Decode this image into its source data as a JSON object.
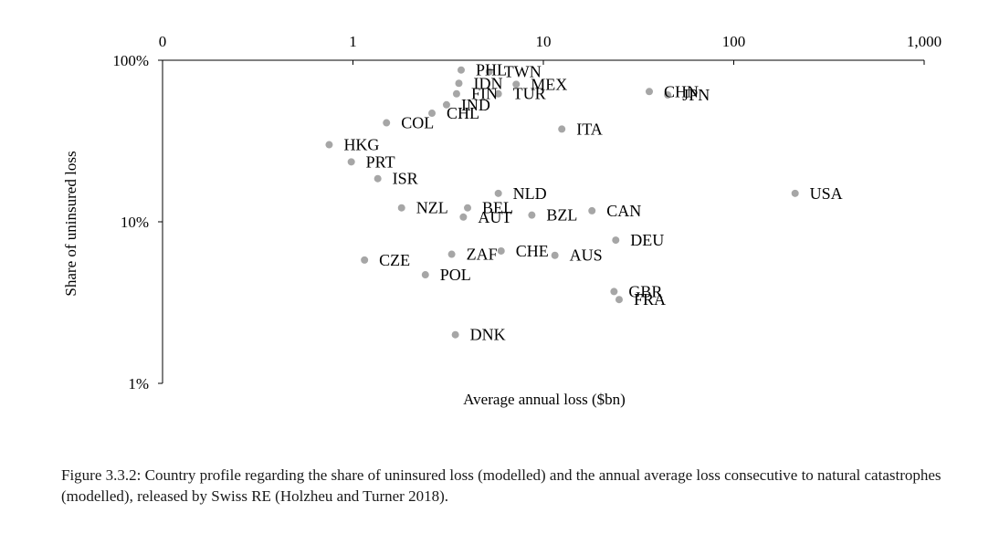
{
  "chart_data": {
    "type": "scatter",
    "title": "",
    "xlabel": "Average annual loss ($bn)",
    "ylabel": "Share of uninsured loss",
    "x_scale": "log",
    "y_scale": "log",
    "xlim": [
      0.1,
      1000
    ],
    "ylim": [
      0.01,
      1
    ],
    "x_ticks": [
      {
        "value": 0.1,
        "label": "0"
      },
      {
        "value": 1,
        "label": "1"
      },
      {
        "value": 10,
        "label": "10"
      },
      {
        "value": 100,
        "label": "100"
      },
      {
        "value": 1000,
        "label": "1,000"
      }
    ],
    "y_ticks": [
      {
        "value": 1,
        "label": "100%"
      },
      {
        "value": 0.1,
        "label": "10%"
      },
      {
        "value": 0.01,
        "label": "1%"
      }
    ],
    "x_axis_position": "top",
    "grid": false,
    "legend": "none",
    "marker_color": "#a6a6a6",
    "points": [
      {
        "label": "PHL",
        "x": 3.7,
        "y": 0.87
      },
      {
        "label": "TWN",
        "x": 5.2,
        "y": 0.85
      },
      {
        "label": "IDN",
        "x": 3.6,
        "y": 0.72
      },
      {
        "label": "MEX",
        "x": 7.2,
        "y": 0.71
      },
      {
        "label": "FIN",
        "x": 3.5,
        "y": 0.62
      },
      {
        "label": "TUR",
        "x": 5.8,
        "y": 0.62
      },
      {
        "label": "IND",
        "x": 3.1,
        "y": 0.53
      },
      {
        "label": "CHL",
        "x": 2.6,
        "y": 0.47
      },
      {
        "label": "CHN",
        "x": 36,
        "y": 0.64
      },
      {
        "label": "JPN",
        "x": 45,
        "y": 0.61
      },
      {
        "label": "COL",
        "x": 1.5,
        "y": 0.41
      },
      {
        "label": "ITA",
        "x": 12.5,
        "y": 0.375
      },
      {
        "label": "HKG",
        "x": 0.75,
        "y": 0.3
      },
      {
        "label": "PRT",
        "x": 0.98,
        "y": 0.235
      },
      {
        "label": "ISR",
        "x": 1.35,
        "y": 0.185
      },
      {
        "label": "NLD",
        "x": 5.8,
        "y": 0.15
      },
      {
        "label": "USA",
        "x": 210,
        "y": 0.15
      },
      {
        "label": "NZL",
        "x": 1.8,
        "y": 0.122
      },
      {
        "label": "BEL",
        "x": 4.0,
        "y": 0.122
      },
      {
        "label": "AUT",
        "x": 3.8,
        "y": 0.107
      },
      {
        "label": "BZL",
        "x": 8.7,
        "y": 0.11
      },
      {
        "label": "CAN",
        "x": 18,
        "y": 0.117
      },
      {
        "label": "DEU",
        "x": 24,
        "y": 0.077
      },
      {
        "label": "ZAF",
        "x": 3.3,
        "y": 0.063
      },
      {
        "label": "CHE",
        "x": 6.0,
        "y": 0.066
      },
      {
        "label": "AUS",
        "x": 11.5,
        "y": 0.062
      },
      {
        "label": "CZE",
        "x": 1.15,
        "y": 0.058
      },
      {
        "label": "POL",
        "x": 2.4,
        "y": 0.047
      },
      {
        "label": "GBR",
        "x": 23.5,
        "y": 0.037
      },
      {
        "label": "FRA",
        "x": 25,
        "y": 0.033
      },
      {
        "label": "DNK",
        "x": 3.45,
        "y": 0.02
      }
    ]
  },
  "caption": "Figure 3.3.2: Country profile regarding the share of uninsured loss (modelled) and the annual average loss consecutive to natural catastrophes (modelled), released by Swiss RE (Holzheu and Turner 2018)."
}
